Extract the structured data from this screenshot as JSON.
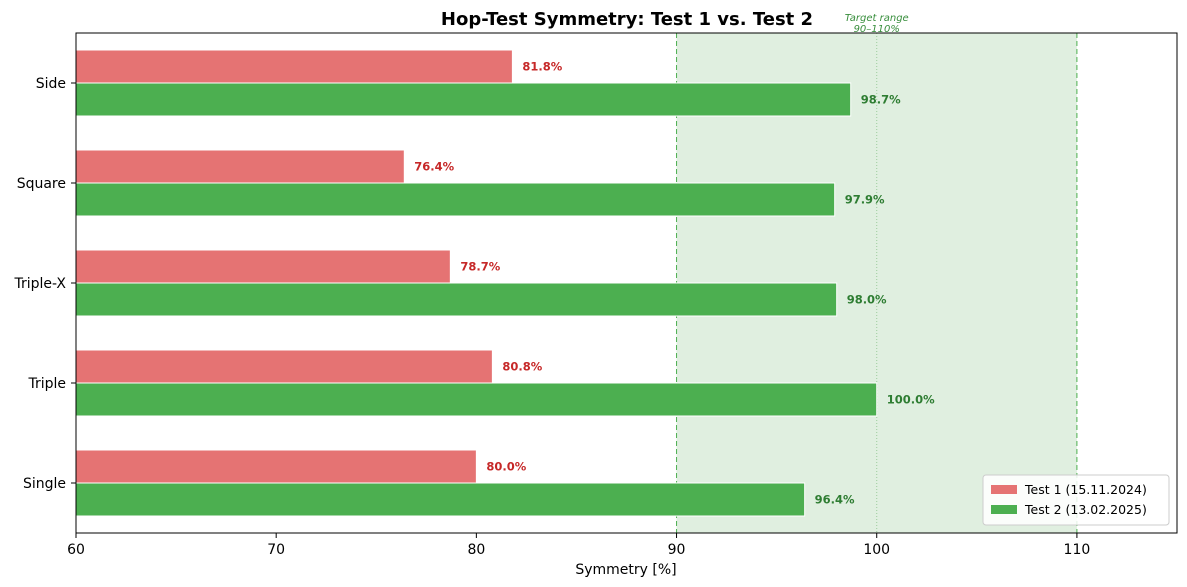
{
  "chart_data": {
    "type": "bar",
    "orientation": "horizontal",
    "title": "Hop-Test Symmetry: Test 1 vs. Test 2",
    "xlabel": "Symmetry [%]",
    "ylabel": "",
    "xlim": [
      60,
      115
    ],
    "xticks": [
      60,
      70,
      80,
      90,
      100,
      110
    ],
    "categories": [
      "Side",
      "Square",
      "Triple-X",
      "Triple",
      "Single"
    ],
    "series": [
      {
        "name": "Test 1 (15.11.2024)",
        "color": "#e57373",
        "label_color": "#c62828",
        "values": [
          81.8,
          76.4,
          78.7,
          80.8,
          80.0
        ],
        "labels": [
          "81.8%",
          "76.4%",
          "78.7%",
          "80.8%",
          "80.0%"
        ]
      },
      {
        "name": "Test 2 (13.02.2025)",
        "color": "#4caf50",
        "label_color": "#2e7d32",
        "values": [
          98.7,
          97.9,
          98.0,
          100.0,
          96.4
        ],
        "labels": [
          "98.7%",
          "97.9%",
          "98.0%",
          "100.0%",
          "96.4%"
        ]
      }
    ],
    "target_range": {
      "min": 90,
      "max": 110,
      "reference": 100,
      "fill_color": "#e0efe0",
      "line_color": "#4caf50",
      "annotation_line1": "Target range",
      "annotation_line2": "90–110%",
      "annotation_color": "#388e3c"
    },
    "grid": false,
    "legend_position": "lower-right"
  }
}
